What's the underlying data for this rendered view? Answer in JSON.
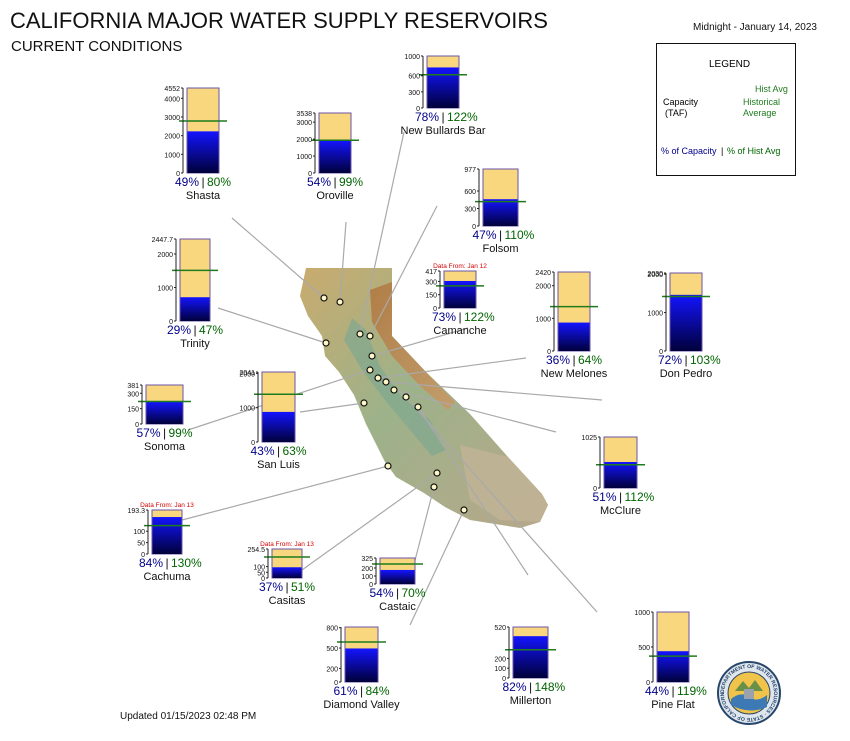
{
  "title": "CALIFORNIA MAJOR WATER SUPPLY RESERVOIRS",
  "subtitle": "CURRENT CONDITIONS",
  "timestamp": "Midnight - January 14, 2023",
  "updated": "Updated 01/15/2023 02:48 PM",
  "legend": {
    "title": "LEGEND",
    "hist_avg": "Hist Avg",
    "capacity_line1": "Capacity",
    "capacity_line2": "(TAF)",
    "historical_line1": "Historical",
    "historical_line2": "Average",
    "pct_capacity": "% of Capacity",
    "separator": "|",
    "pct_hist_avg": "% of Hist Avg"
  },
  "colors": {
    "capacity_fill": "#f9d77e",
    "storage_top": "#1010ff",
    "storage_bottom": "#000040",
    "hist_avg_line": "#1e7b1e",
    "pct_capacity_text": "#00008b",
    "pct_hist_text": "#006400",
    "data_from_note": "#d40000"
  },
  "seal_text": "DEPARTMENT OF WATER RESOURCES · STATE OF CALIFORNIA",
  "chart_data": {
    "type": "bar",
    "title": "CALIFORNIA MAJOR WATER SUPPLY RESERVOIRS",
    "units": "TAF",
    "reservoirs": [
      {
        "name": "Shasta",
        "capacity": 4552,
        "storage_pct": 49,
        "hist_pct": 80,
        "ticks": [
          "4552",
          "4000",
          "3000",
          "2000",
          "1000",
          "0"
        ],
        "note": ""
      },
      {
        "name": "Oroville",
        "capacity": 3538,
        "storage_pct": 54,
        "hist_pct": 99,
        "ticks": [
          "3538",
          "3000",
          "2000",
          "1000",
          "0"
        ],
        "note": ""
      },
      {
        "name": "New Bullards Bar",
        "capacity": 966,
        "storage_pct": 78,
        "hist_pct": 122,
        "ticks": [
          "1000",
          "600",
          "300",
          "0"
        ],
        "note": ""
      },
      {
        "name": "Folsom",
        "capacity": 977,
        "storage_pct": 47,
        "hist_pct": 110,
        "ticks": [
          "977",
          "600",
          "300",
          "0"
        ],
        "note": ""
      },
      {
        "name": "Trinity",
        "capacity": 2447.7,
        "storage_pct": 29,
        "hist_pct": 47,
        "ticks": [
          "2447.7",
          "2000",
          "1000",
          "0"
        ],
        "note": ""
      },
      {
        "name": "Camanche",
        "capacity": 417,
        "storage_pct": 73,
        "hist_pct": 122,
        "ticks": [
          "417",
          "300",
          "150",
          "0"
        ],
        "note": "Data From: Jan 12"
      },
      {
        "name": "New Melones",
        "capacity": 2420,
        "storage_pct": 36,
        "hist_pct": 64,
        "ticks": [
          "2420",
          "2000",
          "1000",
          "0"
        ],
        "note": ""
      },
      {
        "name": "Don Pedro",
        "capacity": 2030,
        "storage_pct": 72,
        "hist_pct": 103,
        "ticks": [
          "2030",
          "2000",
          "1000",
          "0"
        ],
        "note": ""
      },
      {
        "name": "Sonoma",
        "capacity": 381,
        "storage_pct": 57,
        "hist_pct": 99,
        "ticks": [
          "381",
          "300",
          "150",
          "0"
        ],
        "note": ""
      },
      {
        "name": "San Luis",
        "capacity": 2041,
        "storage_pct": 43,
        "hist_pct": 63,
        "ticks": [
          "2041",
          "2000",
          "1000",
          "0"
        ],
        "note": ""
      },
      {
        "name": "McClure",
        "capacity": 1025,
        "storage_pct": 51,
        "hist_pct": 112,
        "ticks": [
          "1025",
          "0"
        ],
        "note": ""
      },
      {
        "name": "Cachuma",
        "capacity": 193.3,
        "storage_pct": 84,
        "hist_pct": 130,
        "ticks": [
          "193.3",
          "100",
          "50",
          "0"
        ],
        "note": "Data From: Jan 13"
      },
      {
        "name": "Casitas",
        "capacity": 254.5,
        "storage_pct": 37,
        "hist_pct": 51,
        "ticks": [
          "254.5",
          "100",
          "50",
          "0"
        ],
        "note": "Data From: Jan 13"
      },
      {
        "name": "Castaic",
        "capacity": 325,
        "storage_pct": 54,
        "hist_pct": 70,
        "ticks": [
          "325",
          "200",
          "100",
          "0"
        ],
        "note": ""
      },
      {
        "name": "Diamond Valley",
        "capacity": 810,
        "storage_pct": 61,
        "hist_pct": 84,
        "ticks": [
          "800",
          "500",
          "200",
          "0"
        ],
        "note": ""
      },
      {
        "name": "Millerton",
        "capacity": 520,
        "storage_pct": 82,
        "hist_pct": 148,
        "ticks": [
          "520",
          "200",
          "100",
          "0"
        ],
        "note": ""
      },
      {
        "name": "Pine Flat",
        "capacity": 1000,
        "storage_pct": 44,
        "hist_pct": 119,
        "ticks": [
          "1000",
          "500",
          "0"
        ],
        "note": ""
      }
    ]
  }
}
